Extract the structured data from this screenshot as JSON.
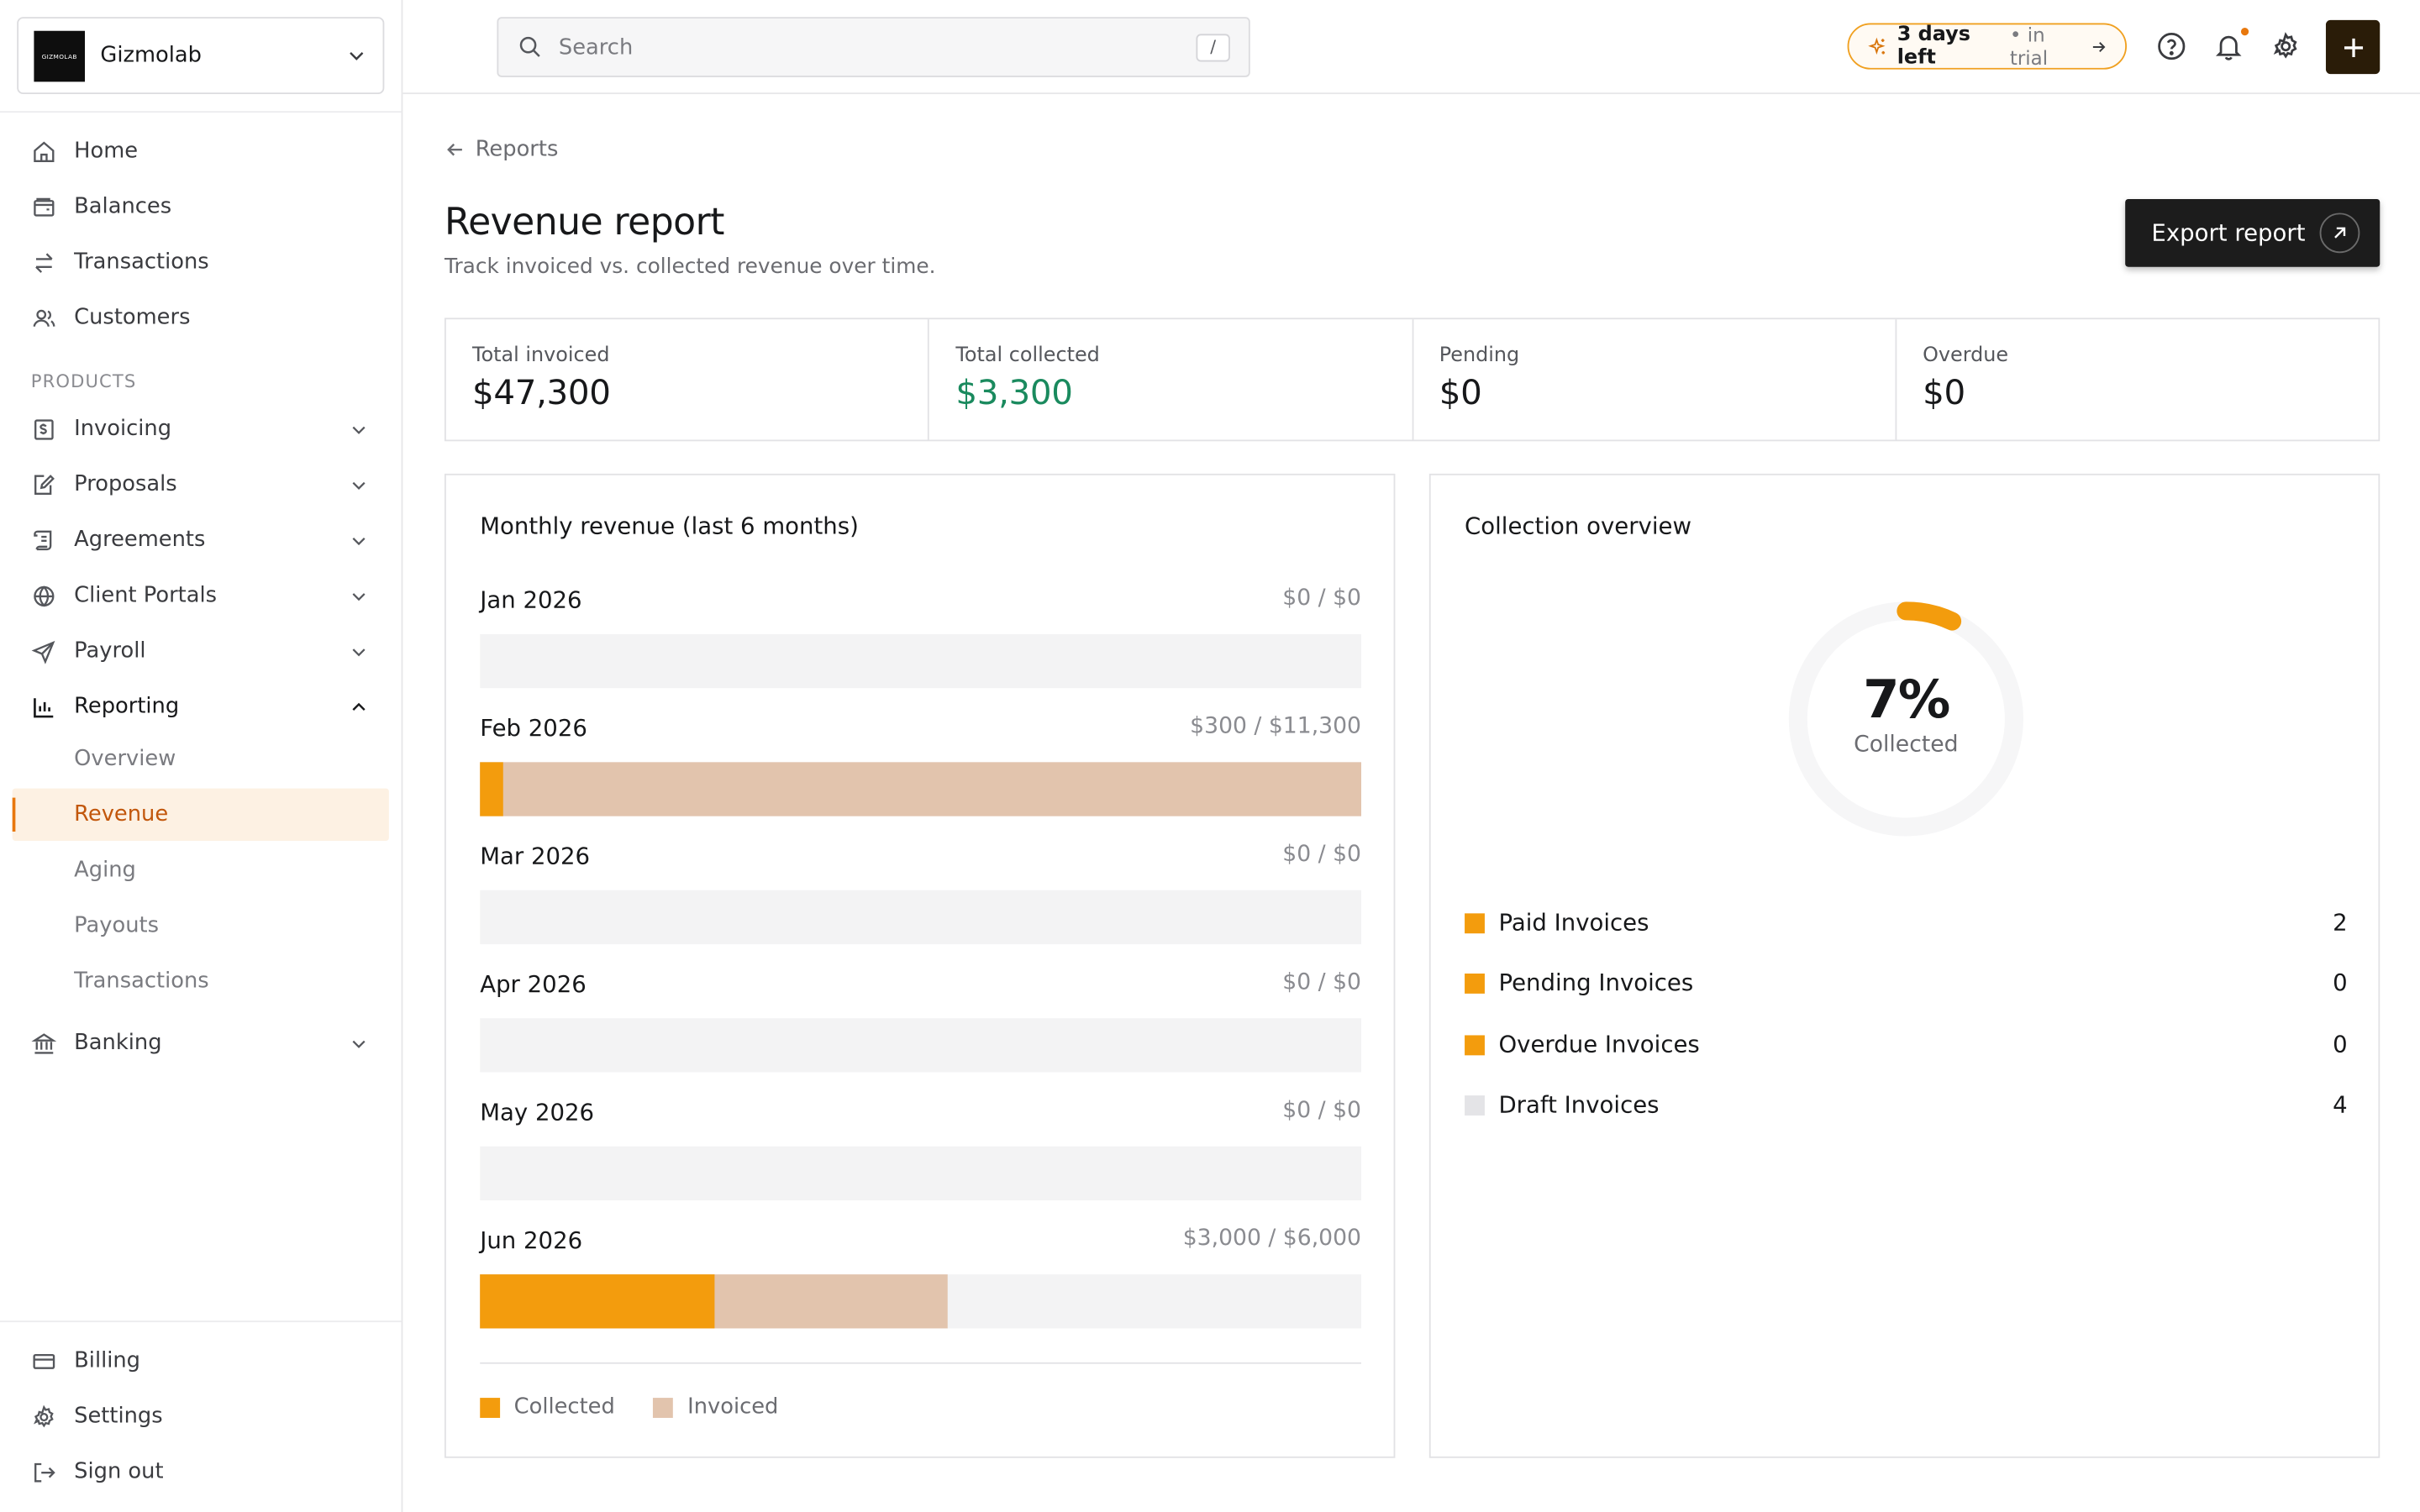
{
  "workspace": {
    "name": "Gizmolab",
    "logo_text": "GIZMOLAB"
  },
  "sidebar": {
    "nav": [
      {
        "label": "Home",
        "icon": "home-icon"
      },
      {
        "label": "Balances",
        "icon": "wallet-icon"
      },
      {
        "label": "Transactions",
        "icon": "swap-icon"
      },
      {
        "label": "Customers",
        "icon": "users-icon"
      }
    ],
    "section_label": "PRODUCTS",
    "products": [
      {
        "label": "Invoicing",
        "icon": "invoice-icon"
      },
      {
        "label": "Proposals",
        "icon": "proposal-icon"
      },
      {
        "label": "Agreements",
        "icon": "scroll-icon"
      },
      {
        "label": "Client Portals",
        "icon": "globe-icon"
      },
      {
        "label": "Payroll",
        "icon": "send-icon"
      },
      {
        "label": "Reporting",
        "icon": "chart-icon"
      }
    ],
    "reporting_sub": [
      {
        "label": "Overview"
      },
      {
        "label": "Revenue"
      },
      {
        "label": "Aging"
      },
      {
        "label": "Payouts"
      },
      {
        "label": "Transactions"
      }
    ],
    "banking": {
      "label": "Banking",
      "icon": "bank-icon"
    },
    "footer": [
      {
        "label": "Billing",
        "icon": "card-icon"
      },
      {
        "label": "Settings",
        "icon": "gear-icon"
      },
      {
        "label": "Sign out",
        "icon": "signout-icon"
      }
    ]
  },
  "topbar": {
    "search_placeholder": "Search",
    "search_shortcut": "/",
    "trial_days": "3 days left",
    "trial_rest": "• in trial"
  },
  "page": {
    "breadcrumb": "Reports",
    "title": "Revenue report",
    "subtitle": "Track invoiced vs. collected revenue over time.",
    "export_label": "Export report"
  },
  "stats": [
    {
      "label": "Total invoiced",
      "value": "$47,300"
    },
    {
      "label": "Total collected",
      "value": "$3,300"
    },
    {
      "label": "Pending",
      "value": "$0"
    },
    {
      "label": "Overdue",
      "value": "$0"
    }
  ],
  "monthly": {
    "title": "Monthly revenue (last 6 months)",
    "legend": {
      "collected": "Collected",
      "invoiced": "Invoiced"
    },
    "months": [
      {
        "label": "Jan 2026",
        "text": "$0 / $0"
      },
      {
        "label": "Feb 2026",
        "text": "$300 / $11,300"
      },
      {
        "label": "Mar 2026",
        "text": "$0 / $0"
      },
      {
        "label": "Apr 2026",
        "text": "$0 / $0"
      },
      {
        "label": "May 2026",
        "text": "$0 / $0"
      },
      {
        "label": "Jun 2026",
        "text": "$3,000 / $6,000"
      }
    ]
  },
  "chart_data": {
    "type": "bar",
    "categories": [
      "Jan 2026",
      "Feb 2026",
      "Mar 2026",
      "Apr 2026",
      "May 2026",
      "Jun 2026"
    ],
    "series": [
      {
        "name": "Collected",
        "values": [
          0,
          300,
          0,
          0,
          0,
          3000
        ]
      },
      {
        "name": "Invoiced",
        "values": [
          0,
          11300,
          0,
          0,
          0,
          6000
        ]
      }
    ],
    "xlim": [
      0,
      11300
    ],
    "title": "Monthly revenue (last 6 months)"
  },
  "collection": {
    "title": "Collection overview",
    "percent_value": 7,
    "percent": "7%",
    "percent_label": "Collected",
    "rows": [
      {
        "label": "Paid Invoices",
        "count": "2",
        "color": "#f39c0d"
      },
      {
        "label": "Pending Invoices",
        "count": "0",
        "color": "#f39c0d"
      },
      {
        "label": "Overdue Invoices",
        "count": "0",
        "color": "#f39c0d"
      },
      {
        "label": "Draft Invoices",
        "count": "4",
        "color": "#e4e4e7"
      }
    ]
  },
  "colors": {
    "accent": "#f39c0d",
    "invoiced": "#e2c4ad",
    "collected_text": "#1a8a5e",
    "active_bg": "#fdf1e3"
  }
}
